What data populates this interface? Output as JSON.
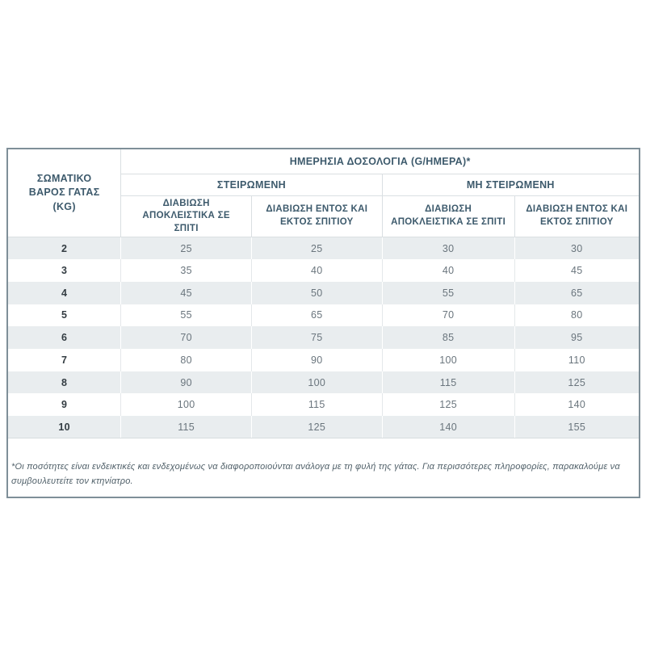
{
  "page": {
    "background": "#ffffff"
  },
  "dosage_table": {
    "title": "ΗΜΕΡΗΣΙΑ ΔΟΣΟΛΟΓΙΑ (G/ΗΜΕΡΑ)*",
    "weight_header": "ΣΩΜΑΤΙΚΟ ΒΑΡΟΣ ΓΑΤΑΣ (KG)",
    "groups": [
      {
        "label": "ΣΤΕΙΡΩΜΕΝΗ",
        "columns": [
          "ΔΙΑΒΙΩΣΗ ΑΠΟΚΛΕΙΣΤΙΚΑ ΣΕ ΣΠΙΤΙ",
          "ΔΙΑΒΙΩΣΗ ΕΝΤΟΣ ΚΑΙ ΕΚΤΟΣ ΣΠΙΤΙΟΥ"
        ]
      },
      {
        "label": "ΜΗ ΣΤΕΙΡΩΜΕΝΗ",
        "columns": [
          "ΔΙΑΒΙΩΣΗ ΑΠΟΚΛΕΙΣΤΙΚΑ ΣΕ ΣΠΙΤΙ",
          "ΔΙΑΒΙΩΣΗ ΕΝΤΟΣ ΚΑΙ ΕΚΤΟΣ ΣΠΙΤΙΟΥ"
        ]
      }
    ],
    "rows": [
      {
        "kg": "2",
        "values": [
          "25",
          "25",
          "30",
          "30"
        ]
      },
      {
        "kg": "3",
        "values": [
          "35",
          "40",
          "40",
          "45"
        ]
      },
      {
        "kg": "4",
        "values": [
          "45",
          "50",
          "55",
          "65"
        ]
      },
      {
        "kg": "5",
        "values": [
          "55",
          "65",
          "70",
          "80"
        ]
      },
      {
        "kg": "6",
        "values": [
          "70",
          "75",
          "85",
          "95"
        ]
      },
      {
        "kg": "7",
        "values": [
          "80",
          "90",
          "100",
          "110"
        ]
      },
      {
        "kg": "8",
        "values": [
          "90",
          "100",
          "115",
          "125"
        ]
      },
      {
        "kg": "9",
        "values": [
          "100",
          "115",
          "125",
          "140"
        ]
      },
      {
        "kg": "10",
        "values": [
          "115",
          "125",
          "140",
          "155"
        ]
      }
    ],
    "footnote": "*Οι ποσότητες είναι ενδεικτικές και ενδεχομένως να διαφοροποιούνται ανάλογα με τη φυλή της γάτας. Για περισσότερες πληροφορίες, παρακαλούμε να συμβουλευτείτε τον κτηνίατρο.",
    "colors": {
      "header_text": "#3d5a6c",
      "value_text": "#6a757d",
      "weight_text": "#333c42",
      "stripe": "#e9edef",
      "inner_border": "#dadfe2",
      "outer_border": "#7f8f98",
      "footnote_text": "#4f5f68"
    }
  },
  "chart_data": {
    "type": "table",
    "title": "ΗΜΕΡΗΣΙΑ ΔΟΣΟΛΟΓΙΑ (G/ΗΜΕΡΑ)*",
    "columns": [
      "ΣΩΜΑΤΙΚΟ ΒΑΡΟΣ ΓΑΤΑΣ (KG)",
      "ΣΤΕΙΡΩΜΕΝΗ - ΔΙΑΒΙΩΣΗ ΑΠΟΚΛΕΙΣΤΙΚΑ ΣΕ ΣΠΙΤΙ",
      "ΣΤΕΙΡΩΜΕΝΗ - ΔΙΑΒΙΩΣΗ ΕΝΤΟΣ ΚΑΙ ΕΚΤΟΣ ΣΠΙΤΙΟΥ",
      "ΜΗ ΣΤΕΙΡΩΜΕΝΗ - ΔΙΑΒΙΩΣΗ ΑΠΟΚΛΕΙΣΤΙΚΑ ΣΕ ΣΠΙΤΙ",
      "ΜΗ ΣΤΕΙΡΩΜΕΝΗ - ΔΙΑΒΙΩΣΗ ΕΝΤΟΣ ΚΑΙ ΕΚΤΟΣ ΣΠΙΤΙΟΥ"
    ],
    "rows": [
      [
        2,
        25,
        25,
        30,
        30
      ],
      [
        3,
        35,
        40,
        40,
        45
      ],
      [
        4,
        45,
        50,
        55,
        65
      ],
      [
        5,
        55,
        65,
        70,
        80
      ],
      [
        6,
        70,
        75,
        85,
        95
      ],
      [
        7,
        80,
        90,
        100,
        110
      ],
      [
        8,
        90,
        100,
        115,
        125
      ],
      [
        9,
        100,
        115,
        125,
        140
      ],
      [
        10,
        115,
        125,
        140,
        155
      ]
    ]
  }
}
